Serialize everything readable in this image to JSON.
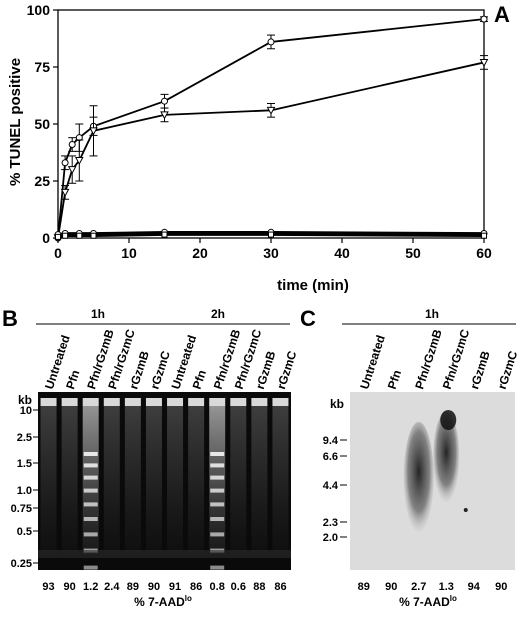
{
  "panels": {
    "A": {
      "letter": "A"
    },
    "B": {
      "letter": "B",
      "groups": [
        "1h",
        "2h"
      ],
      "lanes": [
        "Untreated",
        "Pfn",
        "Pfn/rGzmB",
        "Pfn/rGzmC",
        "rGzmB",
        "rGzmC",
        "Untreated",
        "Pfn",
        "Pfn/rGzmB",
        "Pfn/rGzmC",
        "rGzmB",
        "rGzmC"
      ],
      "kb_label": "kb",
      "markers": [
        "10",
        "2.5",
        "1.5",
        "1.0",
        "0.75",
        "0.5",
        "0.25"
      ],
      "percent_values": [
        "93",
        "90",
        "1.2",
        "2.4",
        "89",
        "90",
        "91",
        "86",
        "0.8",
        "0.6",
        "88",
        "86"
      ],
      "percent_label": "% 7-AAD",
      "percent_sup": "lo"
    },
    "C": {
      "letter": "C",
      "group": "1h",
      "lanes": [
        "Untreated",
        "Pfn",
        "Pfn/rGzmB",
        "Pfn/rGzmC",
        "rGzmB",
        "rGzmC"
      ],
      "kb_label": "kb",
      "markers": [
        "9.4",
        "6.6",
        "4.4",
        "2.3",
        "2.0"
      ],
      "percent_values": [
        "89",
        "90",
        "2.7",
        "1.3",
        "94",
        "90"
      ],
      "percent_label": "% 7-AAD",
      "percent_sup": "lo"
    }
  },
  "chart_data": {
    "type": "line",
    "xlabel": "time (min)",
    "ylabel": "% TUNEL positive",
    "xlim": [
      0,
      60
    ],
    "ylim": [
      0,
      100
    ],
    "xticks": [
      "0",
      "10",
      "20",
      "30",
      "40",
      "50",
      "60"
    ],
    "yticks": [
      "0",
      "25",
      "50",
      "75",
      "100"
    ],
    "series": [
      {
        "marker": "circle",
        "x": [
          0,
          1,
          2,
          3,
          5,
          15,
          30,
          60
        ],
        "y": [
          0,
          33,
          41,
          44,
          49,
          60,
          86,
          96
        ],
        "err": [
          0,
          3,
          3,
          6,
          4,
          3,
          3,
          1
        ]
      },
      {
        "marker": "triangle",
        "x": [
          0,
          1,
          2,
          3,
          5,
          15,
          30,
          60
        ],
        "y": [
          0,
          20,
          30,
          34,
          47,
          54,
          56,
          77
        ],
        "err": [
          0,
          3,
          6,
          9,
          11,
          3,
          3,
          3
        ]
      },
      {
        "marker": "circle",
        "x": [
          0,
          1,
          3,
          5,
          15,
          30,
          60
        ],
        "y": [
          1.5,
          2,
          2,
          2,
          2.5,
          2.5,
          2
        ],
        "err": [
          0.5,
          0.5,
          0.5,
          0.5,
          0.5,
          0.5,
          0.5
        ]
      },
      {
        "marker": "square",
        "x": [
          0,
          1,
          3,
          5,
          15,
          30,
          60
        ],
        "y": [
          0.5,
          1,
          1,
          1,
          1.5,
          1.5,
          1
        ],
        "err": [
          0.5,
          0.5,
          0.5,
          0.5,
          0.5,
          0.5,
          0.5
        ]
      }
    ]
  }
}
